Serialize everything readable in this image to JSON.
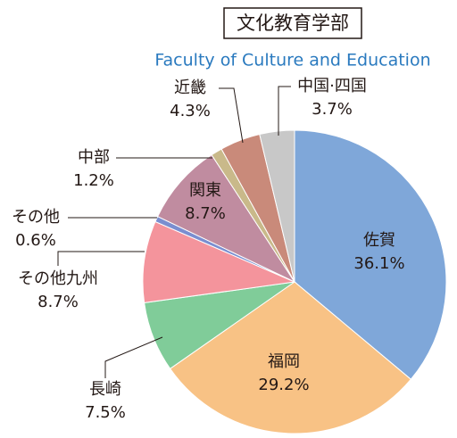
{
  "chart_data": {
    "type": "pie",
    "title": "文化教育学部",
    "subtitle": "Faculty of Culture and Education",
    "categories": [
      "佐賀",
      "福岡",
      "長崎",
      "その他九州",
      "その他",
      "関東",
      "中部",
      "近畿",
      "中国·四国"
    ],
    "values": [
      36.1,
      29.2,
      7.5,
      8.7,
      0.6,
      8.7,
      1.2,
      4.3,
      3.7
    ],
    "value_labels": [
      "36.1%",
      "29.2%",
      "7.5%",
      "8.7%",
      "0.6%",
      "8.7%",
      "1.2%",
      "4.3%",
      "3.7%"
    ],
    "colors": [
      "#7fa7d9",
      "#f8c285",
      "#80cc99",
      "#f4949c",
      "#7a8ed0",
      "#c08ca0",
      "#c9b98a",
      "#c98a7a",
      "#c8c8c8"
    ]
  }
}
